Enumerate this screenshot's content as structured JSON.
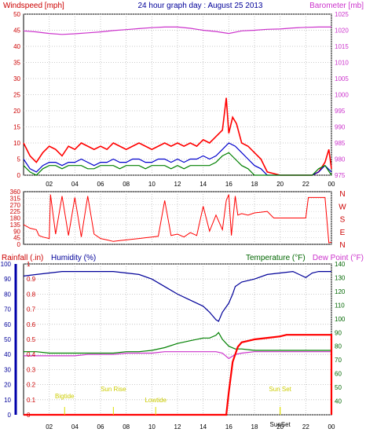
{
  "header": {
    "left_axis_label": "Windspeed [mph]",
    "title": "24 hour graph day : August 25 2013",
    "right_axis_label": "Barometer [mb]"
  },
  "bottom_header": {
    "rainfall_label": "Rainfall (.in)",
    "humidity_label": "Humidity (%)",
    "temperature_label": "Temperature (°F)",
    "dewpoint_label": "Dew Point (°F)"
  },
  "colors": {
    "wind_speed": "#ff0000",
    "wind_gust": "#0000cc",
    "wind_calm": "#008000",
    "barometer": "#cc33cc",
    "direction": "#ff0000",
    "rain": "#ff0000",
    "humidity": "#000099",
    "temperature": "#008000",
    "dew_point": "#cc33cc",
    "events": "#dddd00",
    "rainfall_axis": "#0000aa"
  },
  "chart_data": [
    {
      "type": "line",
      "title": "24 hour graph day : August 25 2013",
      "xlabel": "",
      "ylabel": "Windspeed [mph]",
      "y2label": "Barometer [mb]",
      "x_ticks": [
        "02",
        "04",
        "06",
        "08",
        "10",
        "12",
        "14",
        "16",
        "18",
        "20",
        "22",
        "00"
      ],
      "x_range_hours": [
        0,
        24
      ],
      "ylim": [
        0,
        50
      ],
      "y_ticks": [
        0,
        5,
        10,
        15,
        20,
        25,
        30,
        35,
        40,
        45,
        50
      ],
      "y2lim": [
        975,
        1025
      ],
      "y2_ticks": [
        975,
        980,
        985,
        990,
        995,
        1000,
        1005,
        1010,
        1015,
        1020,
        1025
      ],
      "grid": true,
      "series": [
        {
          "axis": "left",
          "color": "wind_speed",
          "x": [
            0,
            0.5,
            1,
            1.5,
            2,
            2.5,
            3,
            3.5,
            4,
            4.5,
            5,
            5.5,
            6,
            6.5,
            7,
            7.5,
            8,
            8.5,
            9,
            9.5,
            10,
            10.5,
            11,
            11.5,
            12,
            12.5,
            13,
            13.5,
            14,
            14.5,
            15,
            15.5,
            15.8,
            16,
            16.3,
            16.6,
            17,
            17.5,
            18,
            18.5,
            19,
            20,
            21,
            22,
            22.5,
            23,
            23.5,
            23.8,
            24
          ],
          "y": [
            10,
            6,
            4,
            7,
            9,
            8,
            6,
            9,
            8,
            10,
            9,
            8,
            9,
            8,
            10,
            9,
            8,
            9,
            10,
            9,
            8,
            9,
            10,
            9,
            10,
            9,
            10,
            9,
            11,
            10,
            12,
            14,
            24,
            13,
            18,
            16,
            10,
            9,
            7,
            5,
            1,
            0,
            0,
            0,
            0,
            1,
            4,
            8,
            2
          ]
        },
        {
          "axis": "left",
          "color": "wind_gust",
          "x": [
            0,
            0.5,
            1,
            1.5,
            2,
            2.5,
            3,
            3.5,
            4,
            4.5,
            5,
            5.5,
            6,
            6.5,
            7,
            7.5,
            8,
            8.5,
            9,
            9.5,
            10,
            10.5,
            11,
            11.5,
            12,
            12.5,
            13,
            13.5,
            14,
            14.5,
            15,
            15.5,
            16,
            16.5,
            17,
            17.5,
            18,
            18.5,
            19,
            20,
            21,
            22,
            22.5,
            23,
            23.5,
            24
          ],
          "y": [
            5,
            2,
            1,
            3,
            4,
            4,
            3,
            4,
            4,
            5,
            4,
            3,
            4,
            4,
            5,
            4,
            4,
            5,
            5,
            4,
            4,
            5,
            5,
            4,
            5,
            4,
            5,
            5,
            6,
            5,
            6,
            8,
            10,
            9,
            7,
            5,
            3,
            2,
            0,
            0,
            0,
            0,
            0,
            1,
            3,
            1
          ]
        },
        {
          "axis": "left",
          "color": "wind_calm",
          "x": [
            0,
            0.5,
            1,
            1.5,
            2,
            2.5,
            3,
            3.5,
            4,
            4.5,
            5,
            5.5,
            6,
            6.5,
            7,
            7.5,
            8,
            8.5,
            9,
            9.5,
            10,
            10.5,
            11,
            11.5,
            12,
            12.5,
            13,
            13.5,
            14,
            14.5,
            15,
            15.5,
            16,
            16.5,
            17,
            17.5,
            18,
            19,
            20,
            21,
            22,
            22.5,
            23,
            23.5,
            24
          ],
          "y": [
            3,
            1,
            0,
            2,
            3,
            3,
            2,
            3,
            3,
            3,
            2,
            2,
            3,
            3,
            3,
            2,
            3,
            3,
            3,
            2,
            3,
            3,
            3,
            2,
            3,
            2,
            3,
            3,
            3,
            3,
            4,
            6,
            7,
            5,
            3,
            2,
            0,
            0,
            0,
            0,
            0,
            0,
            2,
            3,
            0
          ]
        },
        {
          "axis": "right",
          "color": "barometer",
          "x": [
            0,
            1,
            2,
            3,
            4,
            5,
            6,
            7,
            8,
            9,
            10,
            11,
            12,
            13,
            14,
            15,
            16,
            17,
            18,
            19,
            20,
            21,
            22,
            23,
            24
          ],
          "y": [
            1019.8,
            1019.5,
            1019.0,
            1018.7,
            1018.9,
            1019.2,
            1019.5,
            1019.9,
            1020.2,
            1020.5,
            1020.8,
            1021.0,
            1021.0,
            1020.6,
            1020.0,
            1019.6,
            1019.0,
            1019.8,
            1020.0,
            1020.3,
            1020.4,
            1020.7,
            1020.9,
            1021.0,
            1021.0
          ]
        }
      ]
    },
    {
      "type": "line",
      "title": "",
      "ylabel": "",
      "x_range_hours": [
        0,
        24
      ],
      "ylim": [
        0,
        360
      ],
      "y_ticks": [
        0,
        45,
        90,
        135,
        180,
        225,
        270,
        315,
        360
      ],
      "compass_labels": [
        "N",
        "W",
        "S",
        "E",
        "N"
      ],
      "series": [
        {
          "color": "direction",
          "x": [
            0,
            0.5,
            1,
            1.2,
            1.5,
            2,
            2.1,
            2.5,
            3,
            3.5,
            4,
            4.5,
            5,
            5.5,
            6,
            6.5,
            7,
            7.5,
            8,
            8.5,
            9,
            9.5,
            10,
            10.5,
            11,
            11.5,
            12,
            12.5,
            13,
            13.5,
            14,
            14.5,
            15,
            15.5,
            15.8,
            16,
            16.2,
            16.5,
            16.7,
            17,
            17.5,
            18,
            18.5,
            19,
            19.5,
            20,
            20.5,
            21,
            21.5,
            22,
            22.2,
            22.5,
            23,
            23.5,
            23.8,
            24
          ],
          "y": [
            135,
            110,
            100,
            60,
            50,
            40,
            340,
            70,
            330,
            60,
            320,
            50,
            330,
            70,
            40,
            30,
            20,
            25,
            30,
            35,
            40,
            45,
            50,
            55,
            300,
            60,
            70,
            50,
            80,
            60,
            260,
            90,
            200,
            100,
            300,
            340,
            60,
            330,
            200,
            210,
            200,
            215,
            220,
            225,
            180,
            180,
            180,
            180,
            180,
            180,
            320,
            320,
            320,
            320,
            10,
            15
          ]
        }
      ]
    },
    {
      "type": "line",
      "title": "",
      "ylabel": "Rainfall (.in)",
      "y2label": "Temperature (°F)",
      "x_ticks": [
        "02",
        "04",
        "06",
        "08",
        "10",
        "12",
        "14",
        "16",
        "18",
        "20",
        "22",
        "00"
      ],
      "x_range_hours": [
        0,
        24
      ],
      "rain_ylim": [
        0,
        1.0
      ],
      "rain_ticks": [
        0,
        0.1,
        0.2,
        0.3,
        0.4,
        0.5,
        0.6,
        0.7,
        0.8,
        0.9,
        1
      ],
      "humidity_ylim": [
        0,
        100
      ],
      "humidity_ticks": [
        0,
        10,
        20,
        30,
        40,
        50,
        60,
        70,
        80,
        90,
        100
      ],
      "temp_ylim": [
        30,
        140
      ],
      "temp_ticks": [
        40,
        50,
        60,
        70,
        80,
        90,
        100,
        110,
        120,
        130,
        140
      ],
      "grid": true,
      "series": [
        {
          "axis": "humidity",
          "color": "humidity",
          "x": [
            0,
            1,
            2,
            3,
            4,
            5,
            6,
            7,
            8,
            9,
            10,
            11,
            12,
            13,
            14,
            14.5,
            15,
            15.2,
            15.5,
            16,
            16.3,
            16.5,
            17,
            18,
            19,
            20,
            21,
            22,
            22.5,
            23,
            24
          ],
          "y": [
            92,
            93,
            94,
            95,
            95,
            95,
            95,
            95,
            94,
            93,
            90,
            85,
            80,
            76,
            72,
            68,
            63,
            62,
            68,
            74,
            80,
            85,
            88,
            90,
            93,
            94,
            95,
            91,
            94,
            95,
            95
          ]
        },
        {
          "axis": "temperature",
          "color": "temperature",
          "x": [
            0,
            1,
            2,
            3,
            4,
            5,
            6,
            7,
            8,
            9,
            10,
            11,
            12,
            13,
            14,
            14.5,
            15,
            15.2,
            15.5,
            16,
            16.5,
            17,
            18,
            19,
            20,
            21,
            22,
            23,
            24
          ],
          "y": [
            76,
            76,
            75,
            75,
            75,
            75,
            75,
            75,
            76,
            76,
            77,
            79,
            82,
            84,
            86,
            86,
            88,
            90,
            85,
            80,
            78,
            78,
            77,
            77,
            77,
            77,
            77,
            77,
            77
          ]
        },
        {
          "axis": "temperature",
          "color": "dew_point",
          "x": [
            0,
            1,
            2,
            3,
            4,
            5,
            6,
            7,
            8,
            9,
            10,
            11,
            12,
            13,
            14,
            15,
            15.5,
            16,
            16.5,
            17,
            18,
            19,
            20,
            21,
            22,
            23,
            24
          ],
          "y": [
            73,
            73,
            73,
            73,
            73,
            74,
            74,
            74,
            75,
            75,
            75,
            76,
            76,
            76,
            76,
            76,
            75,
            71,
            74,
            75,
            76,
            76,
            76,
            76,
            76,
            76,
            76
          ]
        },
        {
          "axis": "rain",
          "color": "rain",
          "x": [
            0,
            15.8,
            16,
            16.3,
            16.5,
            16.7,
            17,
            17.5,
            18,
            19,
            20,
            20.5,
            21,
            22,
            23,
            24,
            24
          ],
          "y": [
            0,
            0,
            0.15,
            0.35,
            0.4,
            0.45,
            0.48,
            0.49,
            0.5,
            0.51,
            0.52,
            0.53,
            0.53,
            0.53,
            0.53,
            0.53,
            0
          ]
        }
      ],
      "events": [
        {
          "label": "Bigtide",
          "hour": 3.2
        },
        {
          "label": "Sun Rise",
          "hour": 7.0
        },
        {
          "label": "Lowtide",
          "hour": 10.3
        },
        {
          "label": "Sun Set",
          "hour": 20.0
        },
        {
          "label": "SunSet",
          "hour": 20.0
        }
      ]
    }
  ]
}
